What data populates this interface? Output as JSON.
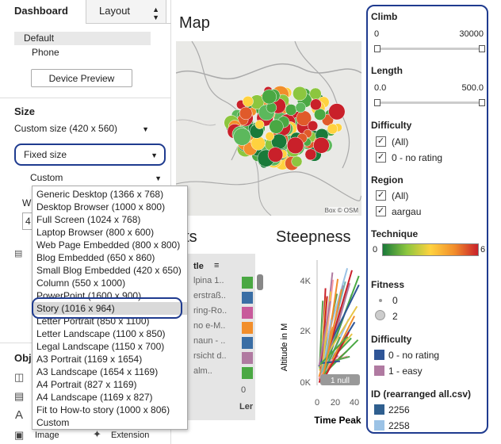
{
  "tabs": {
    "dashboard": "Dashboard",
    "layout": "Layout"
  },
  "devices": {
    "default": "Default",
    "phone": "Phone",
    "preview_button": "Device Preview"
  },
  "size": {
    "title": "Size",
    "current": "Custom size (420 x 560)",
    "mode": "Fixed size",
    "preset": "Custom",
    "width_label": "W",
    "width_value": "4"
  },
  "preset_options": [
    "Generic Desktop (1366 x 768)",
    "Desktop Browser (1000 x 800)",
    "Full Screen (1024 x 768)",
    "Laptop Browser (800 x 600)",
    "Web Page Embedded (800 x 800)",
    "Blog Embedded (650 x 860)",
    "Small Blog Embedded (420 x 650)",
    "Column (550 x 1000)",
    "PowerPoint (1600 x 900)",
    "Story (1016 x 964)",
    "Letter Portrait (850 x 1100)",
    "Letter Landscape (1100 x 850)",
    "Legal Landscape (1150 x 700)",
    "A3 Portrait (1169 x 1654)",
    "A3 Landscape (1654 x 1169)",
    "A4 Portrait (827 x 1169)",
    "A4 Landscape (1169 x 827)",
    "Fit to How-to story (1000 x 806)",
    "Custom"
  ],
  "selected_preset": "Story (1016 x 964)",
  "objects": {
    "title": "Obje",
    "image": "Image",
    "extension": "Extension"
  },
  "map": {
    "title": "Map",
    "attribution": "Box © OSM"
  },
  "stats": {
    "title": "ats",
    "column_header": "tle",
    "rows": [
      "lpina 1..",
      "erstraß..",
      "ring-Ro..",
      "no e-M..",
      "naun - ..",
      "rsicht d..",
      "alm.."
    ],
    "bottom_value": "0",
    "bottom_label": "Ler",
    "row_colors": [
      "#4aa843",
      "#3a6ea5",
      "#c85a9b",
      "#f28e2b",
      "#3a6ea5",
      "#b07aa1",
      "#4aa843"
    ]
  },
  "steepness": {
    "title": "Steepness",
    "ylabel": "Altitude in M",
    "xlabel": "Time Peak",
    "y_ticks": [
      "4K",
      "2K",
      "0K"
    ],
    "x_ticks": [
      "0",
      "20",
      "40"
    ],
    "null_badge": "1 null"
  },
  "chart_data": {
    "type": "line",
    "title": "Steepness",
    "xlabel": "Time Peak",
    "ylabel": "Altitude in M",
    "y_ticks": [
      "4K",
      "2K",
      "0K"
    ],
    "x_ticks": [
      "0",
      "20",
      "40"
    ],
    "ylim": [
      0,
      4500
    ],
    "xlim": [
      0,
      45
    ]
  },
  "filters": {
    "climb": {
      "title": "Climb",
      "min": "0",
      "max": "30000"
    },
    "length": {
      "title": "Length",
      "min": "0.0",
      "max": "500.0"
    },
    "difficulty": {
      "title": "Difficulty",
      "options": [
        "(All)",
        "0 - no rating"
      ]
    },
    "region": {
      "title": "Region",
      "options": [
        "(All)",
        "aargau"
      ]
    },
    "technique": {
      "title": "Technique",
      "min": "0",
      "max": "6"
    },
    "fitness": {
      "title": "Fitness",
      "options": [
        "0",
        "2"
      ]
    },
    "difficulty_legend": {
      "title": "Difficulty",
      "items": [
        {
          "label": "0 - no rating",
          "color": "#2f5597"
        },
        {
          "label": "1 - easy",
          "color": "#b07aa1"
        }
      ]
    },
    "id_legend": {
      "title": "ID (rearranged all.csv)",
      "items": [
        {
          "label": "2256",
          "color": "#2f5f8f"
        },
        {
          "label": "2258",
          "color": "#9cc3e6"
        }
      ]
    }
  }
}
